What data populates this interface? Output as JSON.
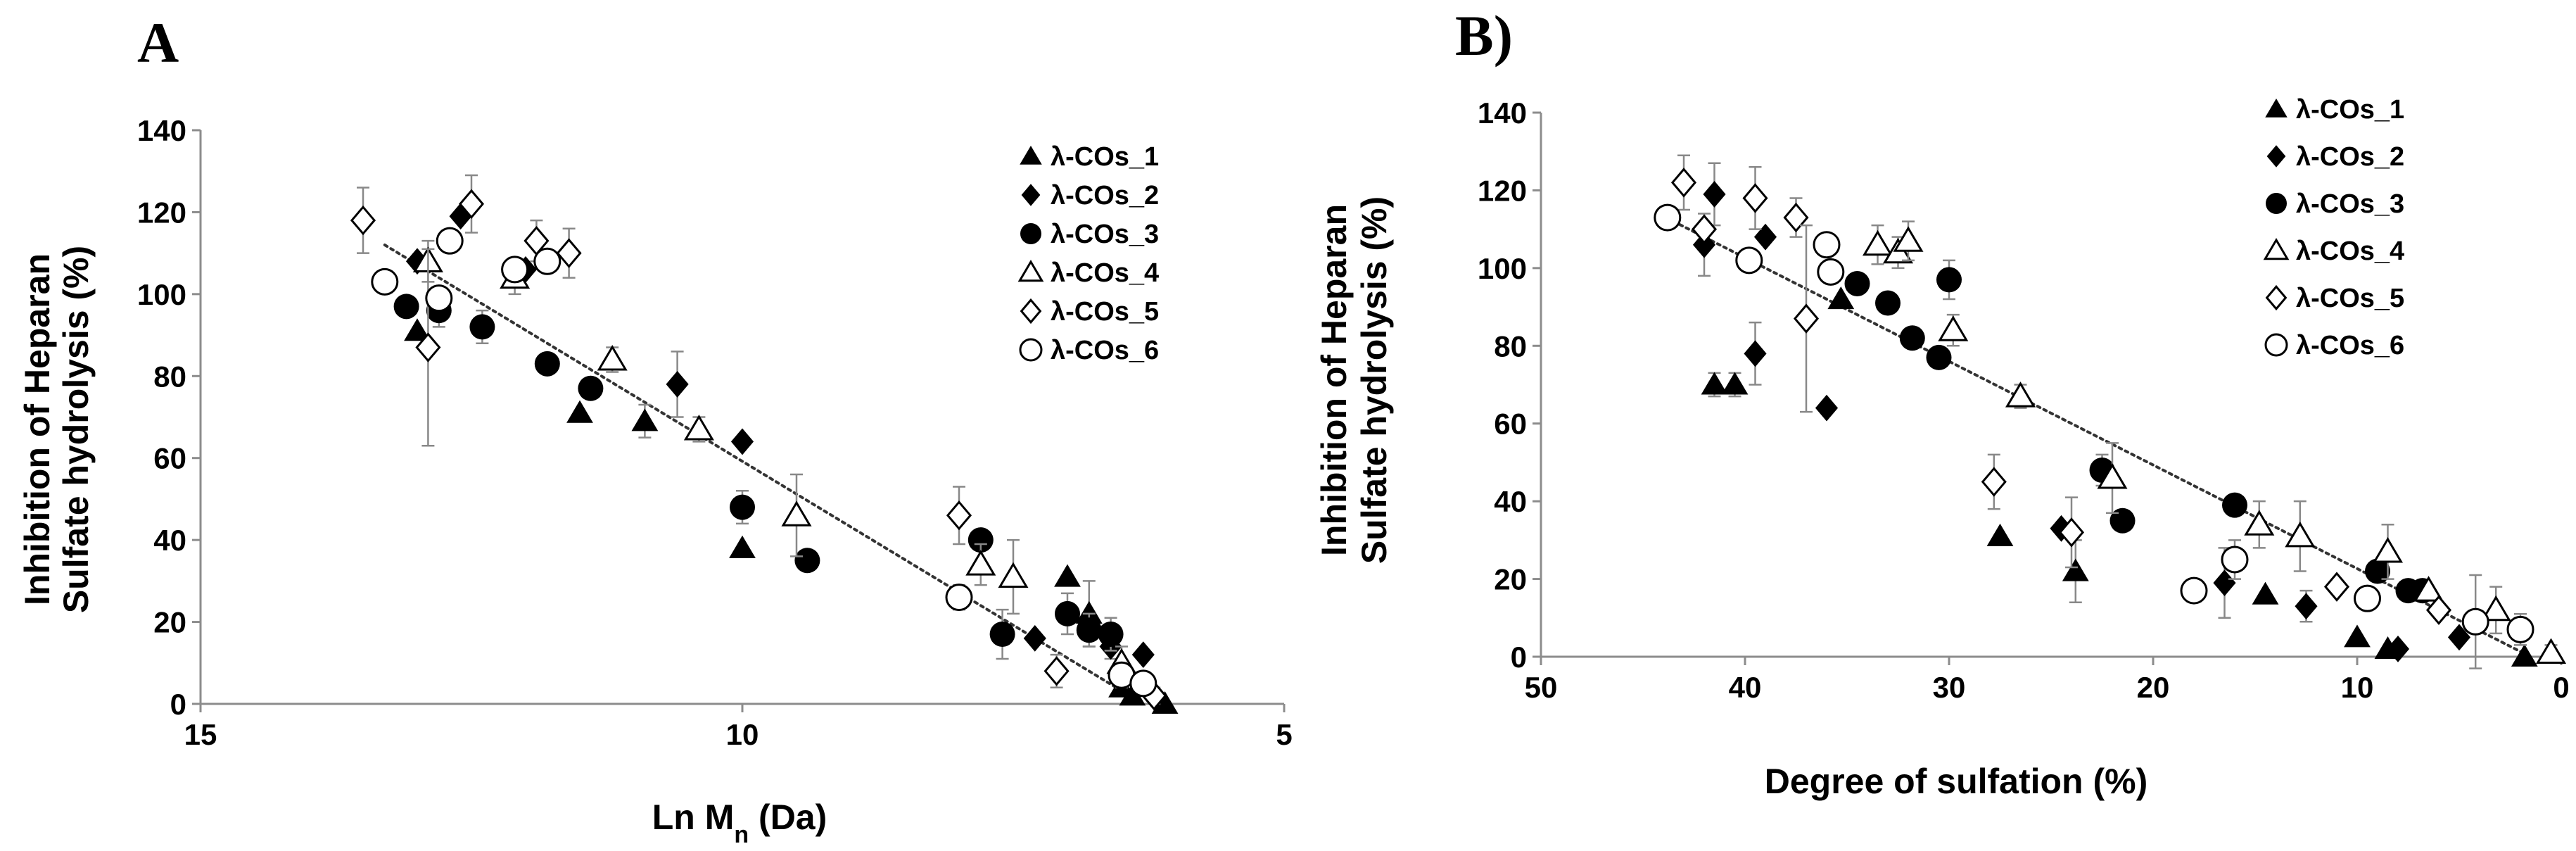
{
  "chart_data": [
    {
      "panel": "A",
      "type": "scatter",
      "xlabel": "Ln Mn (Da)",
      "ylabel_lines": [
        "Inhibition of Heparan",
        "Sulfate hydrolysis (%)"
      ],
      "xlim": [
        15,
        5
      ],
      "ylim": [
        0,
        140
      ],
      "x_reversed": true,
      "x_ticks": [
        15,
        10,
        5
      ],
      "y_ticks": [
        0,
        20,
        40,
        60,
        80,
        100,
        120,
        140
      ],
      "grid": false,
      "trendline": {
        "style": "dotted",
        "from": [
          13.3,
          112
        ],
        "to": [
          6.3,
          0
        ]
      },
      "legend_position": "top-right",
      "series": [
        {
          "name": "λ-COs_1",
          "marker": "triangle-filled",
          "points": [
            [
              13.0,
              91,
              0
            ],
            [
              11.5,
              71,
              0
            ],
            [
              10.9,
              69,
              4
            ],
            [
              10.0,
              38,
              0
            ],
            [
              7.0,
              31,
              0
            ],
            [
              6.8,
              22,
              8
            ],
            [
              6.5,
              4,
              2
            ],
            [
              6.4,
              2,
              0
            ],
            [
              6.1,
              0,
              0
            ]
          ]
        },
        {
          "name": "λ-COs_2",
          "marker": "diamond-filled",
          "points": [
            [
              13.0,
              108,
              0
            ],
            [
              12.6,
              119,
              0
            ],
            [
              12.0,
              106,
              0
            ],
            [
              10.6,
              78,
              8
            ],
            [
              10.0,
              64,
              0
            ],
            [
              7.3,
              16,
              0
            ],
            [
              6.8,
              19,
              0
            ],
            [
              6.6,
              14,
              3
            ],
            [
              6.3,
              12,
              0
            ]
          ]
        },
        {
          "name": "λ-COs_3",
          "marker": "circle-filled",
          "points": [
            [
              13.1,
              97,
              0
            ],
            [
              12.8,
              96,
              4
            ],
            [
              12.4,
              92,
              4
            ],
            [
              11.8,
              83,
              0
            ],
            [
              11.4,
              77,
              0
            ],
            [
              10.0,
              48,
              4
            ],
            [
              9.4,
              35,
              0
            ],
            [
              7.8,
              40,
              0
            ],
            [
              7.6,
              17,
              6
            ],
            [
              7.0,
              22,
              5
            ],
            [
              6.8,
              18,
              4
            ],
            [
              6.6,
              17,
              4
            ]
          ]
        },
        {
          "name": "λ-COs_4",
          "marker": "triangle-open",
          "points": [
            [
              12.9,
              108,
              5
            ],
            [
              12.1,
              104,
              4
            ],
            [
              11.2,
              84,
              3
            ],
            [
              10.4,
              67,
              3
            ],
            [
              9.5,
              46,
              10
            ],
            [
              7.8,
              34,
              5
            ],
            [
              7.5,
              31,
              9
            ],
            [
              6.5,
              10,
              4
            ]
          ]
        },
        {
          "name": "λ-COs_5",
          "marker": "diamond-open",
          "points": [
            [
              13.5,
              118,
              8
            ],
            [
              12.9,
              87,
              24
            ],
            [
              12.5,
              122,
              7
            ],
            [
              11.9,
              113,
              5
            ],
            [
              11.6,
              110,
              6
            ],
            [
              8.0,
              46,
              7
            ],
            [
              7.1,
              8,
              4
            ],
            [
              6.2,
              2,
              2
            ]
          ]
        },
        {
          "name": "λ-COs_6",
          "marker": "circle-open",
          "points": [
            [
              13.3,
              103,
              0
            ],
            [
              12.8,
              99,
              0
            ],
            [
              12.7,
              113,
              0
            ],
            [
              12.1,
              106,
              0
            ],
            [
              11.8,
              108,
              0
            ],
            [
              8.0,
              26,
              3
            ],
            [
              6.5,
              7,
              3
            ],
            [
              6.3,
              5,
              0
            ]
          ]
        }
      ]
    },
    {
      "panel": "B)",
      "type": "scatter",
      "xlabel": "Degree of sulfation (%)",
      "ylabel_lines": [
        "Inhibition of Heparan",
        "Sulfate hydrolysis (%)"
      ],
      "xlim": [
        50,
        0
      ],
      "ylim": [
        0,
        140
      ],
      "x_reversed": true,
      "x_ticks": [
        50,
        40,
        30,
        20,
        10,
        0
      ],
      "y_ticks": [
        0,
        20,
        40,
        60,
        80,
        100,
        120,
        140
      ],
      "grid": false,
      "trendline": {
        "style": "dotted",
        "from": [
          43.5,
          112
        ],
        "to": [
          1.5,
          0
        ]
      },
      "legend_position": "top-right",
      "series": [
        {
          "name": "λ-COs_1",
          "marker": "triangle-filled",
          "points": [
            [
              41.5,
              70,
              3
            ],
            [
              40.5,
              70,
              3
            ],
            [
              35.3,
              92,
              0
            ],
            [
              27.5,
              31,
              0
            ],
            [
              23.8,
              22,
              8
            ],
            [
              14.5,
              16,
              0
            ],
            [
              10.0,
              5,
              0
            ],
            [
              8.5,
              2,
              0
            ],
            [
              1.8,
              0,
              0
            ]
          ]
        },
        {
          "name": "λ-COs_2",
          "marker": "diamond-filled",
          "points": [
            [
              42.0,
              106,
              8
            ],
            [
              41.5,
              119,
              8
            ],
            [
              39.5,
              78,
              8
            ],
            [
              39.0,
              108,
              0
            ],
            [
              36.0,
              64,
              0
            ],
            [
              24.5,
              33,
              0
            ],
            [
              16.5,
              19,
              9
            ],
            [
              12.5,
              13,
              4
            ],
            [
              9.5,
              15,
              0
            ],
            [
              8.0,
              2,
              0
            ],
            [
              5.0,
              5,
              0
            ]
          ]
        },
        {
          "name": "λ-COs_3",
          "marker": "circle-filled",
          "points": [
            [
              34.5,
              96,
              0
            ],
            [
              33.0,
              91,
              0
            ],
            [
              31.8,
              82,
              0
            ],
            [
              30.5,
              77,
              0
            ],
            [
              30.0,
              97,
              5
            ],
            [
              22.5,
              48,
              4
            ],
            [
              21.5,
              35,
              0
            ],
            [
              16.0,
              39,
              0
            ],
            [
              9.0,
              22,
              0
            ],
            [
              7.5,
              17,
              0
            ],
            [
              6.8,
              17,
              0
            ]
          ]
        },
        {
          "name": "λ-COs_4",
          "marker": "triangle-open",
          "points": [
            [
              33.5,
              106,
              5
            ],
            [
              32.5,
              104,
              4
            ],
            [
              32.0,
              107,
              5
            ],
            [
              29.8,
              84,
              4
            ],
            [
              26.5,
              67,
              3
            ],
            [
              22.0,
              46,
              9
            ],
            [
              14.8,
              34,
              6
            ],
            [
              12.8,
              31,
              9
            ],
            [
              8.5,
              27,
              7
            ],
            [
              6.5,
              17,
              0
            ],
            [
              3.2,
              12,
              6
            ],
            [
              0.5,
              1,
              2
            ]
          ]
        },
        {
          "name": "λ-COs_5",
          "marker": "diamond-open",
          "points": [
            [
              43.0,
              122,
              7
            ],
            [
              42.0,
              110,
              0
            ],
            [
              39.5,
              118,
              8
            ],
            [
              37.5,
              113,
              5
            ],
            [
              37.0,
              87,
              24
            ],
            [
              27.8,
              45,
              7
            ],
            [
              24.0,
              32,
              9
            ],
            [
              11.0,
              18,
              0
            ],
            [
              6.0,
              12,
              0
            ]
          ]
        },
        {
          "name": "λ-COs_6",
          "marker": "circle-open",
          "points": [
            [
              43.8,
              113,
              0
            ],
            [
              39.8,
              102,
              0
            ],
            [
              36.0,
              106,
              0
            ],
            [
              35.8,
              99,
              0
            ],
            [
              18.0,
              17,
              0
            ],
            [
              16.0,
              25,
              5
            ],
            [
              9.5,
              15,
              0
            ],
            [
              4.2,
              9,
              12
            ],
            [
              2.0,
              7,
              4
            ]
          ]
        }
      ]
    }
  ]
}
